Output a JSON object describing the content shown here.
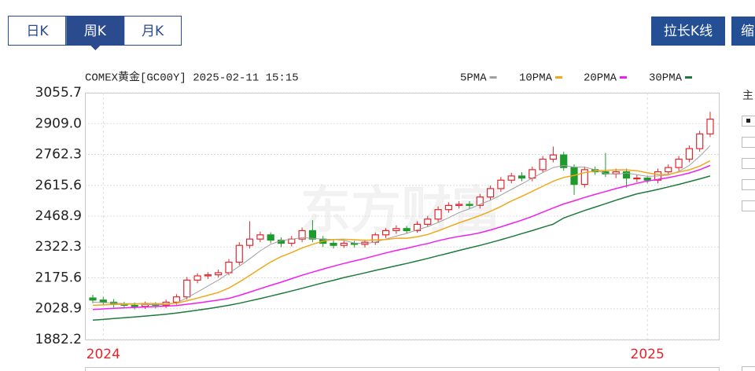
{
  "tabs": [
    "日K",
    "周K",
    "月K"
  ],
  "selected_tab": 1,
  "buttons": [
    "拉长K线",
    "缩"
  ],
  "side": {
    "label": "主"
  },
  "chart_data": {
    "type": "candlestick",
    "title": "COMEX黄金[GC00Y] 2025-02-11 15:15",
    "watermark": "东方财富",
    "categories": [
      null,
      "2024",
      null,
      null,
      null,
      null,
      null,
      null,
      null,
      null,
      null,
      null,
      null,
      null,
      null,
      null,
      null,
      null,
      null,
      null,
      null,
      null,
      null,
      null,
      null,
      null,
      null,
      null,
      null,
      null,
      null,
      null,
      null,
      null,
      null,
      null,
      null,
      null,
      null,
      null,
      null,
      null,
      null,
      null,
      null,
      null,
      null,
      null,
      null,
      null,
      null,
      null,
      null,
      "2025",
      null,
      null,
      null,
      null,
      null,
      null
    ],
    "open": [
      2080,
      2070,
      2060,
      2050,
      2045,
      2040,
      2050,
      2045,
      2060,
      2085,
      2165,
      2185,
      2190,
      2200,
      2250,
      2330,
      2360,
      2380,
      2355,
      2340,
      2360,
      2400,
      2360,
      2340,
      2330,
      2340,
      2335,
      2345,
      2380,
      2400,
      2410,
      2400,
      2430,
      2455,
      2500,
      2520,
      2525,
      2520,
      2560,
      2600,
      2640,
      2660,
      2650,
      2690,
      2740,
      2760,
      2700,
      2620,
      2690,
      2680,
      2670,
      2680,
      2650,
      2650,
      2640,
      2680,
      2700,
      2740,
      2790,
      2860
    ],
    "high": [
      2095,
      2085,
      2075,
      2062,
      2058,
      2063,
      2060,
      2072,
      2098,
      2180,
      2198,
      2203,
      2215,
      2265,
      2345,
      2445,
      2395,
      2392,
      2368,
      2375,
      2415,
      2450,
      2375,
      2355,
      2352,
      2352,
      2358,
      2392,
      2412,
      2425,
      2422,
      2445,
      2470,
      2515,
      2535,
      2540,
      2540,
      2575,
      2615,
      2655,
      2675,
      2678,
      2705,
      2755,
      2800,
      2775,
      2715,
      2705,
      2705,
      2770,
      2695,
      2695,
      2668,
      2662,
      2695,
      2715,
      2755,
      2805,
      2875,
      2965
    ],
    "low": [
      2055,
      2045,
      2035,
      2030,
      2025,
      2028,
      2030,
      2032,
      2048,
      2072,
      2150,
      2170,
      2178,
      2188,
      2235,
      2315,
      2345,
      2340,
      2322,
      2325,
      2345,
      2345,
      2322,
      2315,
      2318,
      2320,
      2320,
      2332,
      2365,
      2385,
      2385,
      2390,
      2418,
      2440,
      2485,
      2505,
      2505,
      2505,
      2545,
      2585,
      2625,
      2635,
      2635,
      2675,
      2725,
      2685,
      2570,
      2605,
      2665,
      2655,
      2650,
      2605,
      2630,
      2625,
      2625,
      2665,
      2685,
      2725,
      2775,
      2845
    ],
    "close": [
      2070,
      2060,
      2050,
      2045,
      2040,
      2050,
      2045,
      2060,
      2085,
      2165,
      2185,
      2190,
      2200,
      2250,
      2330,
      2360,
      2380,
      2355,
      2340,
      2360,
      2400,
      2360,
      2340,
      2330,
      2340,
      2335,
      2345,
      2380,
      2400,
      2410,
      2400,
      2430,
      2455,
      2500,
      2520,
      2525,
      2520,
      2560,
      2600,
      2640,
      2660,
      2650,
      2690,
      2740,
      2760,
      2700,
      2620,
      2690,
      2680,
      2670,
      2680,
      2650,
      2650,
      2640,
      2680,
      2700,
      2740,
      2790,
      2860,
      2930
    ],
    "up_color": "#e3262d",
    "down_color": "#1f9a2c",
    "series": [
      {
        "name": "5PMA",
        "color": "#a0a0a0",
        "values": [
          2060,
          2058,
          2056,
          2053,
          2053,
          2049,
          2048,
          2048,
          2056,
          2081,
          2108,
          2137,
          2165,
          2198,
          2231,
          2266,
          2304,
          2335,
          2353,
          2359,
          2367,
          2363,
          2360,
          2358,
          2354,
          2341,
          2338,
          2346,
          2360,
          2374,
          2387,
          2404,
          2419,
          2439,
          2461,
          2486,
          2504,
          2525,
          2545,
          2569,
          2596,
          2622,
          2650,
          2676,
          2700,
          2710,
          2702,
          2702,
          2690,
          2672,
          2668,
          2674,
          2666,
          2658,
          2660,
          2664,
          2682,
          2710,
          2754,
          2804
        ]
      },
      {
        "name": "10PMA",
        "color": "#f0a81c",
        "values": [
          2045,
          2047,
          2049,
          2050,
          2052,
          2054,
          2053,
          2052,
          2055,
          2067,
          2079,
          2093,
          2106,
          2127,
          2156,
          2187,
          2220,
          2251,
          2277,
          2296,
          2318,
          2335,
          2350,
          2358,
          2359,
          2357,
          2354,
          2356,
          2358,
          2364,
          2364,
          2371,
          2382,
          2399,
          2418,
          2437,
          2454,
          2472,
          2492,
          2515,
          2541,
          2563,
          2587,
          2611,
          2635,
          2653,
          2663,
          2676,
          2684,
          2687,
          2689,
          2689,
          2685,
          2675,
          2667,
          2667,
          2679,
          2689,
          2707,
          2732
        ]
      },
      {
        "name": "20PMA",
        "color": "#f01ef0",
        "values": [
          2025,
          2028,
          2031,
          2033,
          2035,
          2037,
          2039,
          2041,
          2044,
          2050,
          2056,
          2063,
          2070,
          2078,
          2092,
          2108,
          2124,
          2140,
          2155,
          2172,
          2188,
          2203,
          2217,
          2231,
          2244,
          2256,
          2268,
          2281,
          2294,
          2306,
          2316,
          2328,
          2339,
          2352,
          2363,
          2373,
          2380,
          2390,
          2403,
          2418,
          2434,
          2450,
          2468,
          2488,
          2508,
          2527,
          2542,
          2558,
          2572,
          2586,
          2600,
          2613,
          2625,
          2636,
          2644,
          2652,
          2662,
          2674,
          2690,
          2710
        ]
      },
      {
        "name": "30PMA",
        "color": "#1d7a3c",
        "values": [
          1975,
          1978,
          1982,
          1986,
          1990,
          1994,
          1998,
          2003,
          2008,
          2015,
          2022,
          2029,
          2037,
          2045,
          2055,
          2066,
          2077,
          2089,
          2101,
          2113,
          2126,
          2139,
          2152,
          2164,
          2177,
          2188,
          2199,
          2211,
          2222,
          2233,
          2244,
          2256,
          2268,
          2281,
          2293,
          2306,
          2318,
          2330,
          2343,
          2357,
          2371,
          2386,
          2400,
          2416,
          2431,
          2460,
          2478,
          2496,
          2512,
          2528,
          2545,
          2560,
          2575,
          2585,
          2596,
          2608,
          2620,
          2633,
          2646,
          2660
        ]
      }
    ],
    "ylim": [
      1882.2,
      3055.7
    ],
    "yticks": [
      3055.7,
      {
        "value": 2909,
        "label": "2909.0"
      },
      2762.3,
      2615.6,
      2468.9,
      2322.3,
      2175.6,
      2028.9,
      1882.2
    ],
    "grid": true
  }
}
